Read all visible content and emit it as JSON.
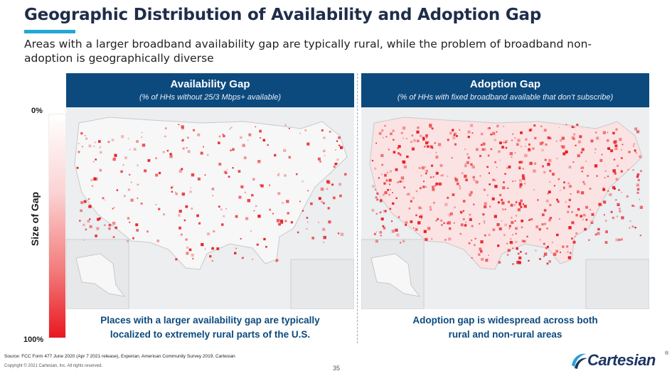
{
  "header": {
    "title": "Geographic Distribution of Availability and Adoption Gap",
    "subtitle": "Areas with a larger broadband availability gap are typically rural, while the problem of broadband non-adoption is geographically diverse"
  },
  "legend": {
    "title": "Size of Gap",
    "top_label": "0%",
    "bottom_label": "100%",
    "colors": {
      "low": "#ffffff",
      "high": "#e8181f"
    }
  },
  "panels": [
    {
      "heading": "Availability Gap",
      "subheading": "(% of HHs without 25/3 Mbps+ available)",
      "caption_line1": "Places with a larger availability gap are typically",
      "caption_line2": "localized to extremely rural parts of the U.S.",
      "intensity": 0.35
    },
    {
      "heading": "Adoption Gap",
      "subheading": "(% of HHs with fixed broadband available that don’t subscribe)",
      "caption_line1": "Adoption gap is widespread across both",
      "caption_line2": "rural and non-rural areas",
      "intensity": 0.75
    }
  ],
  "footer": {
    "source": "Source: FCC Form 477 June 2020 (Apr 7 2021 release), Experian, American Community Survey 2019, Cartesian",
    "copyright": "Copyright © 2021 Cartesian, Inc. All rights reserved.",
    "page_number": "35",
    "logo_text": "Cartesian",
    "logo_mark": "®"
  },
  "colors": {
    "header_bg": "#0c4a7e",
    "title_color": "#1f2d4a",
    "accent": "#22a7d9",
    "map_fill": "#f3f3f3",
    "gap_red": "#e8181f"
  }
}
